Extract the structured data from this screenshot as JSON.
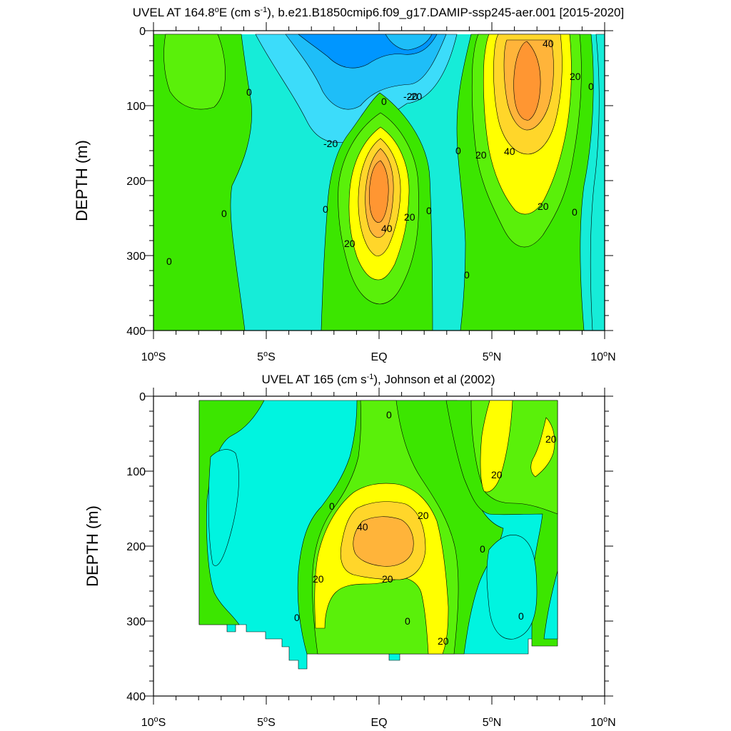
{
  "chart_data": [
    {
      "type": "heatmap",
      "subtype": "filled-contour",
      "title_main": "UVEL AT 164.8",
      "title_deg": "o",
      "title_mid": "E (cm s",
      "title_sup": "-1",
      "title_end": "), b.e21.B1850cmip6.f09_g17.DAMIP-ssp245-aer.001 [2015-2020]",
      "ylabel": "DEPTH (m)",
      "xlim_lat": [
        -10,
        10
      ],
      "ylim": [
        400,
        0
      ],
      "x_ticks": [
        {
          "num": "10",
          "deg": "o",
          "hem": "S"
        },
        {
          "num": "5",
          "deg": "o",
          "hem": "S"
        },
        {
          "num": "",
          "deg": "",
          "hem": "EQ"
        },
        {
          "num": "5",
          "deg": "o",
          "hem": "N"
        },
        {
          "num": "10",
          "deg": "o",
          "hem": "N"
        }
      ],
      "y_ticks": [
        "0",
        "100",
        "200",
        "300",
        "400"
      ],
      "contour_levels": [
        -40,
        -30,
        -20,
        -10,
        0,
        10,
        20,
        30,
        40,
        50
      ],
      "features": [
        {
          "desc": "westward SEC core",
          "lat": -1.5,
          "depth": 20,
          "value": -40
        },
        {
          "desc": "Equatorial Undercurrent core",
          "lat": 0,
          "depth": 220,
          "value": 50
        },
        {
          "desc": "NECC core",
          "lat": 6.5,
          "depth": 80,
          "value": 50
        }
      ],
      "contour_labels": [
        "0",
        "0",
        "0",
        "0",
        "-20",
        "-20",
        "0",
        "0",
        "20",
        "40",
        "20",
        "0",
        "0",
        "-20",
        "0",
        "20",
        "40",
        "20",
        "40",
        "20",
        "0",
        "0"
      ]
    },
    {
      "type": "heatmap",
      "subtype": "filled-contour",
      "title_main": "UVEL AT 165 (cm s",
      "title_sup": "-1",
      "title_end": "), Johnson et al (2002)",
      "ylabel": "DEPTH (m)",
      "xlim_lat": [
        -10,
        10
      ],
      "ylim": [
        400,
        0
      ],
      "x_ticks": [
        {
          "num": "10",
          "deg": "o",
          "hem": "S"
        },
        {
          "num": "5",
          "deg": "o",
          "hem": "S"
        },
        {
          "num": "",
          "deg": "",
          "hem": "EQ"
        },
        {
          "num": "5",
          "deg": "o",
          "hem": "N"
        },
        {
          "num": "10",
          "deg": "o",
          "hem": "N"
        }
      ],
      "y_ticks": [
        "0",
        "100",
        "200",
        "300",
        "400"
      ],
      "contour_levels": [
        -10,
        0,
        10,
        20,
        30,
        40,
        50
      ],
      "data_extent_lat": [
        -8,
        8
      ],
      "features": [
        {
          "desc": "Equatorial Undercurrent core",
          "lat": 0,
          "depth": 185,
          "value": 40
        },
        {
          "desc": "NECC",
          "lat": 5.5,
          "depth": 50,
          "value": 20
        }
      ],
      "contour_labels": [
        "0",
        "20",
        "20",
        "0",
        "40",
        "20",
        "20",
        "20",
        "0",
        "0",
        "0",
        "20",
        "0",
        "0"
      ]
    }
  ],
  "colors": {
    "neg40": "#0096ff",
    "neg30": "#1ebef8",
    "neg20": "#3cdcfa",
    "neg10": "#16ecd8",
    "neg10_obs": "#00f4e0",
    "zero": "#3ce600",
    "pos10": "#5af00a",
    "pos20": "#ffff00",
    "pos30": "#ffd62a",
    "pos40": "#ffb43a",
    "pos50": "#ff9632"
  }
}
